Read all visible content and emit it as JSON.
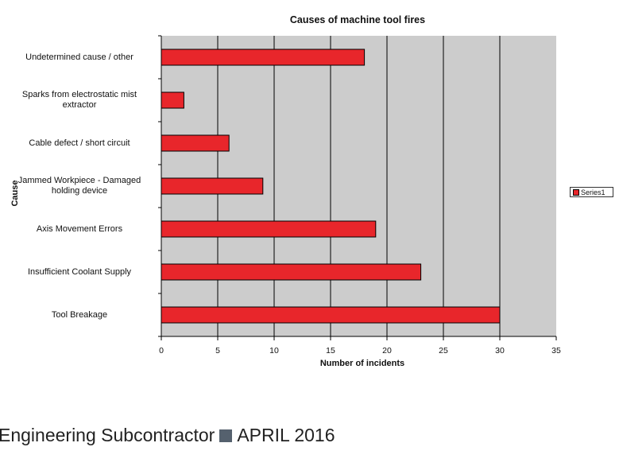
{
  "chart_data": {
    "type": "bar",
    "orientation": "horizontal",
    "title": "Causes of machine tool fires",
    "xlabel": "Number of incidents",
    "ylabel": "Cause",
    "categories": [
      "Undetermined cause / other",
      "Sparks from electrostatic mist extractor",
      "Cable defect / short circuit",
      "Jammed Workpiece - Damaged holding device",
      "Axis Movement Errors",
      "Insufficient Coolant Supply",
      "Tool Breakage"
    ],
    "category_labels": [
      "Undetermined cause / other",
      "Sparks from electrostatic mist\nextractor",
      "Cable defect / short circuit",
      "Jammed Workpiece - Damaged\nholding device",
      "Axis Movement Errors",
      "Insufficient Coolant Supply",
      "Tool Breakage"
    ],
    "series": [
      {
        "name": "Series1",
        "values": [
          18,
          2,
          6,
          9,
          19,
          23,
          30
        ]
      }
    ],
    "xlim": [
      0,
      35
    ],
    "x_ticks": [
      "0",
      "5",
      "10",
      "15",
      "20",
      "25",
      "30",
      "35"
    ],
    "grid": true,
    "legend_position": "right",
    "colors": {
      "bar": "#e8262b",
      "plot_background": "#cccccc",
      "grid": "#000000"
    }
  },
  "footer": {
    "publication": "Engineering Subcontractor",
    "issue": "APRIL 2016",
    "square_color": "#55616e"
  }
}
